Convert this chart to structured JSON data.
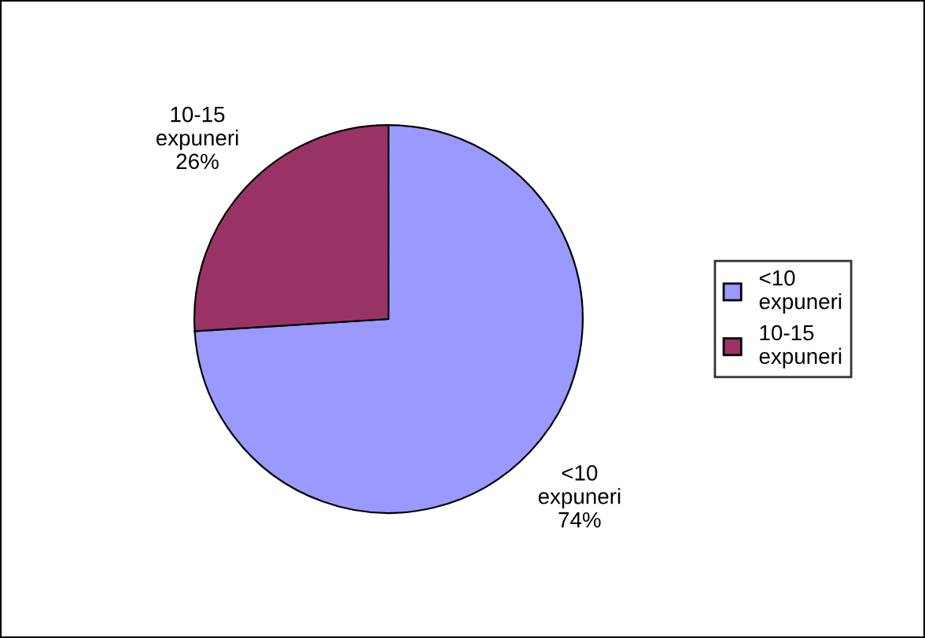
{
  "chart_data": {
    "type": "pie",
    "categories": [
      "<10 expuneri",
      "10-15 expuneri"
    ],
    "values": [
      74,
      26
    ],
    "colors": [
      "#9999ff",
      "#993366"
    ],
    "value_labels": [
      "74%",
      "26%"
    ],
    "legend": "right"
  }
}
